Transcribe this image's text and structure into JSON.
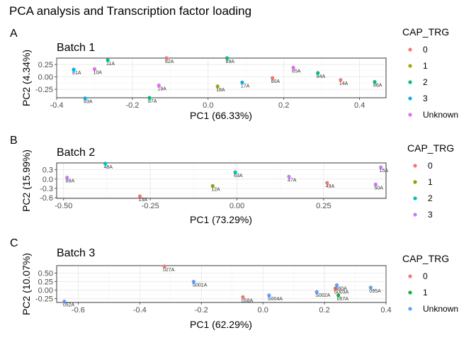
{
  "title": "PCA analysis and Transcription factor loading",
  "palette": {
    "red": "#F8766D",
    "olive": "#A3A500",
    "green": "#00BF7D",
    "teal": "#00B0F6",
    "pink": "#E76BF3",
    "green2": "#00BA38",
    "blue": "#619CFF",
    "cyan": "#00BFC4",
    "purple": "#C77CFF",
    "olive2": "#7CAE00"
  },
  "chart_data": [
    {
      "type": "scatter",
      "panel_tag": "A",
      "title": "Batch 1",
      "xlabel": "PC1 (66.33%)",
      "ylabel": "PC2 (4.34%)",
      "xlim": [
        -0.4,
        0.47
      ],
      "ylim": [
        -0.42,
        0.38
      ],
      "xticks": [
        -0.4,
        -0.2,
        0.0,
        0.2,
        0.4
      ],
      "xtick_labels": [
        "-0.4",
        "-0.2",
        "0.0",
        "0.2",
        "0.4"
      ],
      "yticks": [
        -0.25,
        0.0,
        0.25
      ],
      "ytick_labels": [
        "-0.25",
        "0.00",
        "0.25"
      ],
      "grid": true,
      "legend_title": "CAP_TRG",
      "legend_position": "right",
      "legend": [
        {
          "label": "0",
          "color": "#F8766D"
        },
        {
          "label": "1",
          "color": "#A3A500"
        },
        {
          "label": "2",
          "color": "#00BF7D"
        },
        {
          "label": "3",
          "color": "#00B0F6"
        },
        {
          "label": "Unknown",
          "color": "#E76BF3"
        }
      ],
      "points": [
        {
          "label": "81A",
          "x": -0.355,
          "y": 0.15,
          "color": "#00B0F6"
        },
        {
          "label": "11A",
          "x": -0.265,
          "y": 0.34,
          "color": "#00BF7D"
        },
        {
          "label": "10A",
          "x": -0.3,
          "y": 0.16,
          "color": "#E76BF3"
        },
        {
          "label": "83A",
          "x": -0.325,
          "y": -0.43,
          "color": "#00B0F6"
        },
        {
          "label": "82A",
          "x": -0.11,
          "y": 0.38,
          "color": "#F8766D"
        },
        {
          "label": "19A",
          "x": -0.13,
          "y": -0.17,
          "color": "#E76BF3"
        },
        {
          "label": "87A",
          "x": -0.155,
          "y": -0.42,
          "color": "#00BF7D"
        },
        {
          "label": "89A",
          "x": 0.05,
          "y": 0.38,
          "color": "#00BF7D"
        },
        {
          "label": "18A",
          "x": 0.025,
          "y": -0.19,
          "color": "#A3A500"
        },
        {
          "label": "17A",
          "x": 0.09,
          "y": -0.11,
          "color": "#00B0F6"
        },
        {
          "label": "80A",
          "x": 0.17,
          "y": -0.02,
          "color": "#F8766D"
        },
        {
          "label": "85A",
          "x": 0.225,
          "y": 0.19,
          "color": "#E76BF3"
        },
        {
          "label": "84A",
          "x": 0.29,
          "y": 0.08,
          "color": "#00BF7D"
        },
        {
          "label": "14A",
          "x": 0.35,
          "y": -0.06,
          "color": "#F8766D"
        },
        {
          "label": "86A",
          "x": 0.44,
          "y": -0.1,
          "color": "#00BF7D"
        }
      ]
    },
    {
      "type": "scatter",
      "panel_tag": "B",
      "title": "Batch 2",
      "xlabel": "PC1 (73.29%)",
      "ylabel": "PC2 (15.99%)",
      "xlim": [
        -0.52,
        0.43
      ],
      "ylim": [
        -0.62,
        0.52
      ],
      "xticks": [
        -0.5,
        -0.25,
        0.0,
        0.25
      ],
      "xtick_labels": [
        "-0.50",
        "-0.25",
        "0.00",
        "0.25"
      ],
      "yticks": [
        -0.6,
        -0.3,
        0.0,
        0.3
      ],
      "ytick_labels": [
        "-0.6",
        "-0.3",
        "0.0",
        "0.3"
      ],
      "grid": true,
      "legend_title": "CAP_TRG",
      "legend_position": "right",
      "legend": [
        {
          "label": "0",
          "color": "#F8766D"
        },
        {
          "label": "1",
          "color": "#7CAE00"
        },
        {
          "label": "2",
          "color": "#00BFC4"
        },
        {
          "label": "3",
          "color": "#C77CFF"
        }
      ],
      "points": [
        {
          "label": "88A",
          "x": -0.49,
          "y": 0.05,
          "color": "#C77CFF"
        },
        {
          "label": "48A",
          "x": -0.38,
          "y": 0.5,
          "color": "#00BFC4"
        },
        {
          "label": "13A",
          "x": -0.28,
          "y": -0.55,
          "color": "#F8766D"
        },
        {
          "label": "12A",
          "x": -0.07,
          "y": -0.22,
          "color": "#7CAE00"
        },
        {
          "label": "63A",
          "x": -0.005,
          "y": 0.22,
          "color": "#00BFC4"
        },
        {
          "label": "47A",
          "x": 0.15,
          "y": 0.08,
          "color": "#C77CFF"
        },
        {
          "label": "49A",
          "x": 0.26,
          "y": -0.12,
          "color": "#F8766D"
        },
        {
          "label": "15A",
          "x": 0.415,
          "y": 0.38,
          "color": "#C77CFF"
        },
        {
          "label": "50A",
          "x": 0.4,
          "y": -0.17,
          "color": "#C77CFF"
        }
      ]
    },
    {
      "type": "scatter",
      "panel_tag": "C",
      "title": "Batch 3",
      "xlabel": "PC1 (62.29%)",
      "ylabel": "PC2 (10.07%)",
      "xlim": [
        -0.67,
        0.4
      ],
      "ylim": [
        -0.36,
        0.72
      ],
      "xticks": [
        -0.6,
        -0.4,
        -0.2,
        0.0,
        0.2,
        0.4
      ],
      "xtick_labels": [
        "-0.6",
        "-0.4",
        "-0.2",
        "0.0",
        "0.2",
        "0.4"
      ],
      "yticks": [
        -0.25,
        0.0,
        0.25,
        0.5
      ],
      "ytick_labels": [
        "-0.25",
        "0.00",
        "0.25",
        "0.50"
      ],
      "grid": true,
      "legend_title": "CAP_TRG",
      "legend_position": "right",
      "legend": [
        {
          "label": "0",
          "color": "#F8766D"
        },
        {
          "label": "1",
          "color": "#00BA38"
        },
        {
          "label": "Unknown",
          "color": "#619CFF"
        }
      ],
      "points": [
        {
          "label": "052A",
          "x": -0.645,
          "y": -0.33,
          "color": "#619CFF"
        },
        {
          "label": "027A",
          "x": -0.32,
          "y": 0.7,
          "color": "#F8766D"
        },
        {
          "label": "S001A",
          "x": -0.225,
          "y": 0.25,
          "color": "#619CFF"
        },
        {
          "label": "058A",
          "x": -0.065,
          "y": -0.2,
          "color": "#F8766D"
        },
        {
          "label": "S004A",
          "x": 0.02,
          "y": -0.15,
          "color": "#619CFF"
        },
        {
          "label": "S002A",
          "x": 0.175,
          "y": -0.05,
          "color": "#619CFF"
        },
        {
          "label": "S003A",
          "x": 0.235,
          "y": 0.05,
          "color": "#F8766D"
        },
        {
          "label": "060A",
          "x": 0.24,
          "y": 0.15,
          "color": "#619CFF"
        },
        {
          "label": "057A",
          "x": 0.245,
          "y": -0.15,
          "color": "#00BA38"
        },
        {
          "label": "095A",
          "x": 0.35,
          "y": 0.08,
          "color": "#619CFF"
        }
      ]
    }
  ]
}
